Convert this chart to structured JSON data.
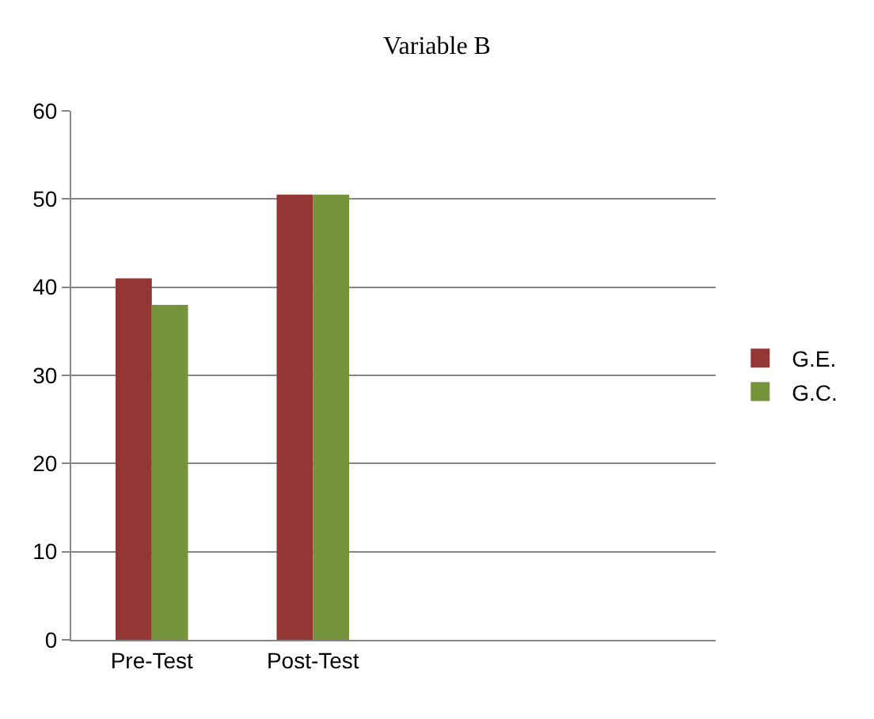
{
  "chart_data": {
    "type": "bar",
    "title": "Variable B",
    "categories": [
      "Pre-Test",
      "Post-Test",
      null,
      null
    ],
    "series": [
      {
        "name": "G.E.",
        "color": "#943634",
        "values": [
          41,
          50.5,
          null,
          null
        ]
      },
      {
        "name": "G.C.",
        "color": "#77933c",
        "values": [
          38,
          50.5,
          null,
          null
        ]
      }
    ],
    "ylim": [
      0,
      60
    ],
    "yticks": [
      0,
      10,
      20,
      30,
      40,
      50,
      60
    ],
    "grid": "y",
    "legend": "right"
  }
}
